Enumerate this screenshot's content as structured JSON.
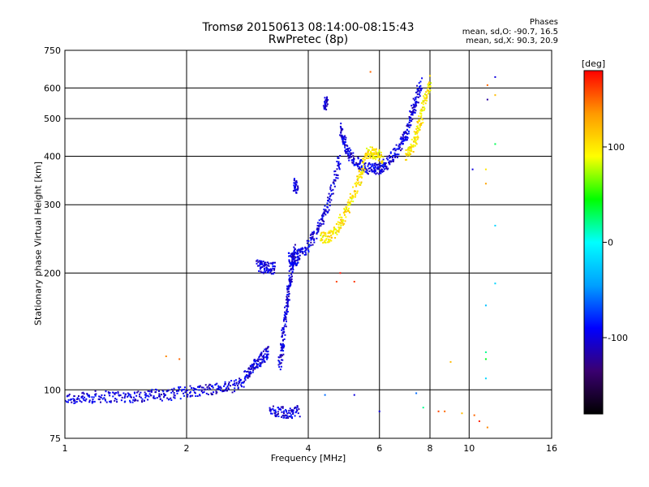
{
  "chart_data": {
    "type": "scatter",
    "title": "Tromsø 20150613 08:14:00-08:15:43",
    "subtitle": "RwPretec (8p)",
    "xlabel": "Frequency [MHz]",
    "ylabel": "Stationary phase Virtual Height [km]",
    "x_scale": "log",
    "y_scale": "log",
    "xlim": [
      1,
      16
    ],
    "ylim": [
      75,
      750
    ],
    "x_ticks": [
      1,
      2,
      4,
      6,
      8,
      10,
      16
    ],
    "y_ticks": [
      75,
      100,
      200,
      300,
      400,
      500,
      600,
      750
    ],
    "grid": true,
    "stats": {
      "heading": "Phases",
      "o_mode": "mean, sd,O: -90.7, 16.5",
      "x_mode": "mean, sd,X: 90.3, 20.9"
    },
    "colorbar": {
      "label": "[deg]",
      "range": [
        -180,
        180
      ],
      "ticks": [
        100,
        0,
        -100
      ],
      "colors": [
        "#000000",
        "#3a0070",
        "#0000ff",
        "#00a0ff",
        "#00ffff",
        "#00ff00",
        "#ffff00",
        "#ff9900",
        "#ff0000"
      ]
    },
    "series": [
      {
        "mode": "O",
        "phase": -100,
        "traces": [
          {
            "x": [
              1.0,
              1.1,
              1.2,
              1.35,
              1.5,
              1.65,
              1.8,
              2.0,
              2.2,
              2.4,
              2.6,
              2.8
            ],
            "y": [
              95,
              95,
              96,
              96,
              96,
              97,
              97,
              99,
              100,
              101,
              102,
              106
            ]
          },
          {
            "x": [
              2.8,
              2.9,
              3.0,
              3.1,
              3.2
            ],
            "y": [
              108,
              113,
              118,
              122,
              125
            ]
          },
          {
            "x": [
              3.0,
              3.1,
              3.2,
              3.3
            ],
            "y": [
              210,
              207,
              206,
              206
            ]
          },
          {
            "x": [
              3.4,
              3.45,
              3.5,
              3.55,
              3.6,
              3.65,
              3.7
            ],
            "y": [
              115,
              130,
              150,
              170,
              190,
              210,
              230
            ]
          },
          {
            "x": [
              3.6,
              3.7,
              3.8,
              4.0,
              4.2,
              4.4,
              4.6,
              4.8
            ],
            "y": [
              220,
              215,
              222,
              235,
              255,
              285,
              330,
              400
            ]
          },
          {
            "x": [
              4.8,
              4.9,
              5.0,
              5.2,
              5.5,
              5.8,
              6.0
            ],
            "y": [
              470,
              440,
              410,
              390,
              375,
              370,
              372
            ]
          },
          {
            "x": [
              6.0,
              6.2,
              6.5,
              6.8,
              7.0,
              7.2,
              7.4,
              7.6
            ],
            "y": [
              372,
              380,
              400,
              430,
              460,
              510,
              560,
              620
            ]
          },
          {
            "x": [
              3.2,
              3.4,
              3.6,
              3.8
            ],
            "y": [
              88,
              88,
              87,
              88
            ]
          },
          {
            "x": [
              4.4,
              4.45
            ],
            "y": [
              550,
              545
            ]
          },
          {
            "x": [
              3.7,
              3.75
            ],
            "y": [
              340,
              330
            ]
          }
        ]
      },
      {
        "mode": "X",
        "phase": 100,
        "traces": [
          {
            "x": [
              4.3,
              4.5,
              4.7,
              4.9,
              5.1,
              5.3,
              5.5
            ],
            "y": [
              245,
              248,
              260,
              280,
              305,
              340,
              380
            ]
          },
          {
            "x": [
              5.5,
              5.7,
              5.9,
              6.1
            ],
            "y": [
              400,
              410,
              405,
              395
            ]
          },
          {
            "x": [
              7.0,
              7.2,
              7.4,
              7.6,
              7.8,
              8.0
            ],
            "y": [
              400,
              420,
              450,
              500,
              560,
              630
            ]
          }
        ]
      },
      {
        "mode": "scattered",
        "points": [
          {
            "x": 1.78,
            "y": 122,
            "phase": 140
          },
          {
            "x": 1.92,
            "y": 120,
            "phase": 150
          },
          {
            "x": 5.7,
            "y": 660,
            "phase": 150
          },
          {
            "x": 4.7,
            "y": 190,
            "phase": 160
          },
          {
            "x": 4.8,
            "y": 200,
            "phase": 175
          },
          {
            "x": 5.2,
            "y": 190,
            "phase": 165
          },
          {
            "x": 4.4,
            "y": 97,
            "phase": -60
          },
          {
            "x": 5.2,
            "y": 97,
            "phase": -100
          },
          {
            "x": 6.0,
            "y": 88,
            "phase": -100
          },
          {
            "x": 7.4,
            "y": 98,
            "phase": -60
          },
          {
            "x": 7.7,
            "y": 90,
            "phase": 20
          },
          {
            "x": 8.4,
            "y": 88,
            "phase": 160
          },
          {
            "x": 8.7,
            "y": 88,
            "phase": 150
          },
          {
            "x": 9.6,
            "y": 87,
            "phase": 120
          },
          {
            "x": 10.3,
            "y": 86,
            "phase": 150
          },
          {
            "x": 10.6,
            "y": 83,
            "phase": 170
          },
          {
            "x": 11.1,
            "y": 80,
            "phase": 140
          },
          {
            "x": 11.1,
            "y": 610,
            "phase": 150
          },
          {
            "x": 11.1,
            "y": 560,
            "phase": -120
          },
          {
            "x": 10.2,
            "y": 370,
            "phase": -100
          },
          {
            "x": 11.0,
            "y": 370,
            "phase": 100
          },
          {
            "x": 11.0,
            "y": 340,
            "phase": 130
          },
          {
            "x": 11.6,
            "y": 640,
            "phase": -100
          },
          {
            "x": 11.6,
            "y": 575,
            "phase": 120
          },
          {
            "x": 11.6,
            "y": 430,
            "phase": 30
          },
          {
            "x": 11.6,
            "y": 265,
            "phase": -20
          },
          {
            "x": 11.6,
            "y": 188,
            "phase": -20
          },
          {
            "x": 11.0,
            "y": 165,
            "phase": -30
          },
          {
            "x": 11.0,
            "y": 125,
            "phase": 20
          },
          {
            "x": 11.0,
            "y": 120,
            "phase": 40
          },
          {
            "x": 11.0,
            "y": 107,
            "phase": -20
          },
          {
            "x": 9.0,
            "y": 118,
            "phase": 120
          }
        ]
      }
    ]
  }
}
